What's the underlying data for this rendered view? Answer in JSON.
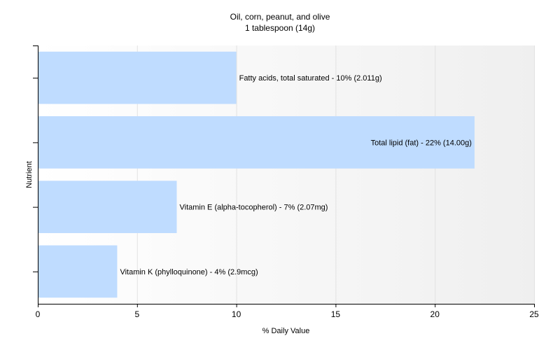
{
  "chart_data": {
    "type": "bar",
    "orientation": "horizontal",
    "title": "Oil, corn, peanut, and olive",
    "subtitle": "1 tablespoon (14g)",
    "xlabel": "% Daily Value",
    "ylabel": "Nutrient",
    "xlim": [
      0,
      25
    ],
    "xticks": [
      0,
      5,
      10,
      15,
      20,
      25
    ],
    "grid": true,
    "legend": "none",
    "bar_color": "#bfdcff",
    "categories": [
      "Fatty acids, total saturated - 10% (2.011g)",
      "Total lipid (fat) - 22% (14.00g)",
      "Vitamin E (alpha-tocopherol) - 7% (2.07mg)",
      "Vitamin K (phylloquinone) - 4% (2.9mcg)"
    ],
    "values": [
      10,
      22,
      7,
      4
    ]
  }
}
